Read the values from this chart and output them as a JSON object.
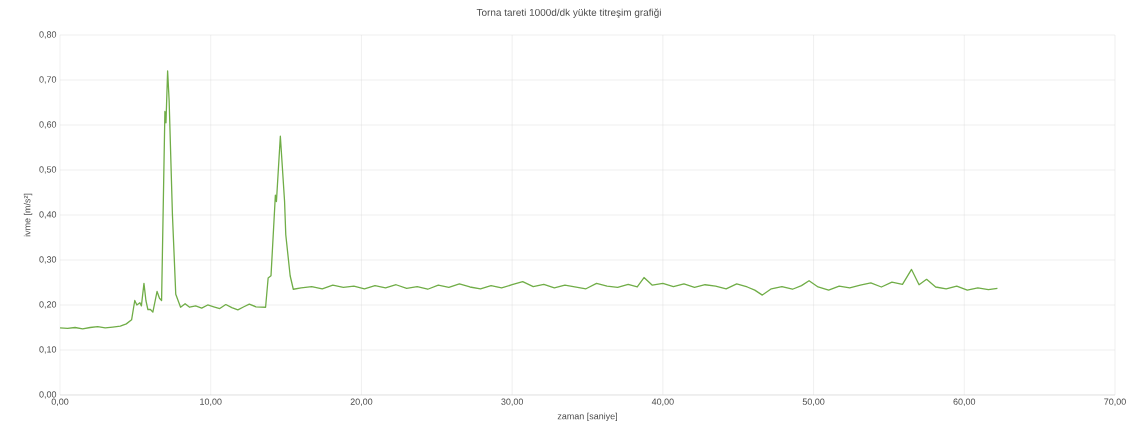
{
  "chart_data": {
    "type": "line",
    "title": "Torna tareti 1000d/dk yükte titreşim grafiği",
    "xlabel": "zaman [saniye]",
    "ylabel": "ivme [m/s²]",
    "color": "#70ad47",
    "grid": true,
    "xlim": [
      0,
      70
    ],
    "ylim": [
      0,
      0.8
    ],
    "xticks": [
      {
        "value": 0,
        "label": "0,00"
      },
      {
        "value": 10,
        "label": "10,00"
      },
      {
        "value": 20,
        "label": "20,00"
      },
      {
        "value": 30,
        "label": "30,00"
      },
      {
        "value": 40,
        "label": "40,00"
      },
      {
        "value": 50,
        "label": "50,00"
      },
      {
        "value": 60,
        "label": "60,00"
      },
      {
        "value": 70,
        "label": "70,00"
      }
    ],
    "yticks": [
      {
        "value": 0,
        "label": "0,00"
      },
      {
        "value": 0.1,
        "label": "0,10"
      },
      {
        "value": 0.2,
        "label": "0,20"
      },
      {
        "value": 0.3,
        "label": "0,30"
      },
      {
        "value": 0.4,
        "label": "0,40"
      },
      {
        "value": 0.5,
        "label": "0,50"
      },
      {
        "value": 0.6,
        "label": "0,60"
      },
      {
        "value": 0.7,
        "label": "0,70"
      },
      {
        "value": 0.8,
        "label": "0,80"
      }
    ],
    "x": [
      0,
      0.5,
      1.0,
      1.5,
      2.0,
      2.5,
      3.0,
      3.5,
      4.0,
      4.4,
      4.75,
      4.96,
      5.1,
      5.3,
      5.4,
      5.57,
      5.7,
      5.83,
      6.0,
      6.16,
      6.44,
      6.6,
      6.74,
      6.96,
      7.03,
      7.14,
      7.24,
      7.46,
      7.68,
      8.0,
      8.3,
      8.6,
      9.0,
      9.4,
      9.8,
      10.2,
      10.6,
      11.0,
      11.4,
      11.8,
      12.2,
      12.56,
      13.0,
      13.64,
      13.81,
      14.0,
      14.29,
      14.36,
      14.62,
      14.9,
      14.98,
      15.27,
      15.48,
      16.0,
      16.7,
      17.4,
      18.1,
      18.8,
      19.5,
      20.2,
      20.9,
      21.6,
      22.3,
      23.0,
      23.7,
      24.4,
      25.1,
      25.8,
      26.5,
      27.2,
      27.9,
      28.6,
      29.3,
      30.0,
      30.7,
      31.4,
      32.1,
      32.8,
      33.5,
      34.2,
      34.9,
      35.6,
      36.3,
      37.0,
      37.7,
      38.3,
      38.75,
      39.3,
      40.0,
      40.7,
      41.4,
      42.1,
      42.8,
      43.5,
      44.2,
      44.9,
      45.6,
      46.1,
      46.6,
      47.2,
      47.9,
      48.6,
      49.2,
      49.7,
      50.3,
      51.0,
      51.7,
      52.4,
      53.1,
      53.8,
      54.5,
      55.2,
      55.9,
      56.5,
      57.0,
      57.5,
      58.1,
      58.8,
      59.5,
      60.2,
      60.9,
      61.6,
      62.2
    ],
    "values": [
      0.149,
      0.148,
      0.15,
      0.147,
      0.15,
      0.152,
      0.149,
      0.151,
      0.153,
      0.158,
      0.167,
      0.21,
      0.2,
      0.205,
      0.198,
      0.248,
      0.21,
      0.19,
      0.19,
      0.184,
      0.23,
      0.215,
      0.21,
      0.63,
      0.605,
      0.72,
      0.655,
      0.4,
      0.224,
      0.195,
      0.203,
      0.195,
      0.198,
      0.193,
      0.2,
      0.196,
      0.192,
      0.201,
      0.194,
      0.189,
      0.196,
      0.202,
      0.196,
      0.195,
      0.26,
      0.265,
      0.444,
      0.43,
      0.575,
      0.43,
      0.356,
      0.265,
      0.235,
      0.238,
      0.241,
      0.236,
      0.244,
      0.239,
      0.242,
      0.236,
      0.243,
      0.238,
      0.245,
      0.237,
      0.241,
      0.235,
      0.244,
      0.239,
      0.247,
      0.24,
      0.236,
      0.243,
      0.238,
      0.245,
      0.252,
      0.241,
      0.246,
      0.238,
      0.244,
      0.24,
      0.236,
      0.248,
      0.242,
      0.239,
      0.246,
      0.24,
      0.261,
      0.244,
      0.248,
      0.241,
      0.247,
      0.239,
      0.245,
      0.242,
      0.236,
      0.247,
      0.24,
      0.233,
      0.222,
      0.236,
      0.241,
      0.235,
      0.243,
      0.254,
      0.24,
      0.233,
      0.242,
      0.238,
      0.244,
      0.249,
      0.24,
      0.251,
      0.246,
      0.279,
      0.245,
      0.257,
      0.24,
      0.236,
      0.242,
      0.233,
      0.238,
      0.234,
      0.237
    ]
  }
}
